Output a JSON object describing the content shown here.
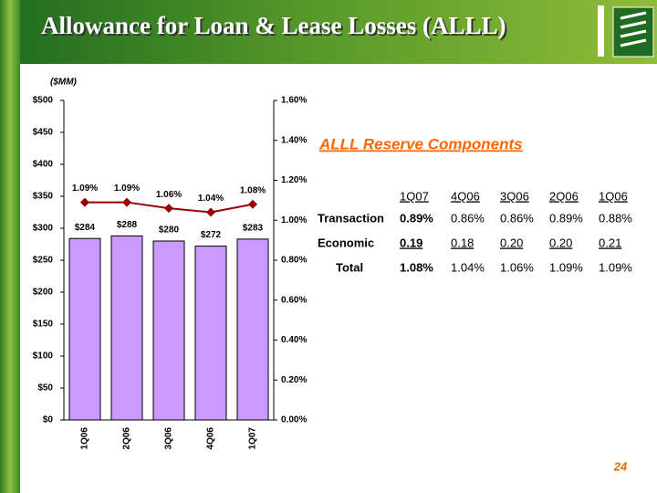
{
  "header": {
    "title": "Allowance for Loan & Lease Losses (ALLL)",
    "page_number": "24"
  },
  "chart_data": {
    "type": "bar",
    "y_label": "($MM)",
    "categories": [
      "1Q06",
      "2Q06",
      "3Q06",
      "4Q06",
      "1Q07"
    ],
    "series": [
      {
        "type": "bar",
        "color": "#cc99ff",
        "values": [
          284,
          288,
          280,
          272,
          283
        ],
        "value_labels": [
          "$284",
          "$288",
          "$280",
          "$272",
          "$283"
        ]
      },
      {
        "type": "line",
        "axis": "y2",
        "color": "#990000",
        "values": [
          1.09,
          1.09,
          1.06,
          1.04,
          1.08
        ],
        "value_labels": [
          "1.09%",
          "1.09%",
          "1.06%",
          "1.04%",
          "1.08%"
        ]
      }
    ],
    "ylim": [
      0,
      500
    ],
    "yticks": [
      {
        "value": 0,
        "label": "$0"
      },
      {
        "value": 50,
        "label": "$50"
      },
      {
        "value": 100,
        "label": "$100"
      },
      {
        "value": 150,
        "label": "$150"
      },
      {
        "value": 200,
        "label": "$200"
      },
      {
        "value": 250,
        "label": "$250"
      },
      {
        "value": 300,
        "label": "$300"
      },
      {
        "value": 350,
        "label": "$350"
      },
      {
        "value": 400,
        "label": "$400"
      },
      {
        "value": 450,
        "label": "$450"
      },
      {
        "value": 500,
        "label": "$500"
      }
    ],
    "y2lim": [
      0,
      1.6
    ],
    "y2ticks": [
      {
        "value": 0,
        "label": "0.00%"
      },
      {
        "value": 0.2,
        "label": "0.20%"
      },
      {
        "value": 0.4,
        "label": "0.40%"
      },
      {
        "value": 0.6,
        "label": "0.60%"
      },
      {
        "value": 0.8,
        "label": "0.80%"
      },
      {
        "value": 1.0,
        "label": "1.00%"
      },
      {
        "value": 1.2,
        "label": "1.20%"
      },
      {
        "value": 1.4,
        "label": "1.40%"
      },
      {
        "value": 1.6,
        "label": "1.60%"
      }
    ]
  },
  "table": {
    "title": "ALLL Reserve Components",
    "columns": [
      "1Q07",
      "4Q06",
      "3Q06",
      "2Q06",
      "1Q06"
    ],
    "rows": [
      {
        "label": "Transaction",
        "cells": [
          "0.89%",
          "0.86%",
          "0.86%",
          "0.89%",
          "0.88%"
        ]
      },
      {
        "label": "Economic",
        "cells": [
          "0.19",
          "0.18",
          "0.20",
          "0.20",
          "0.21"
        ]
      },
      {
        "label": "Total",
        "cells": [
          "1.08%",
          "1.04%",
          "1.06%",
          "1.09%",
          "1.09%"
        ]
      }
    ]
  }
}
